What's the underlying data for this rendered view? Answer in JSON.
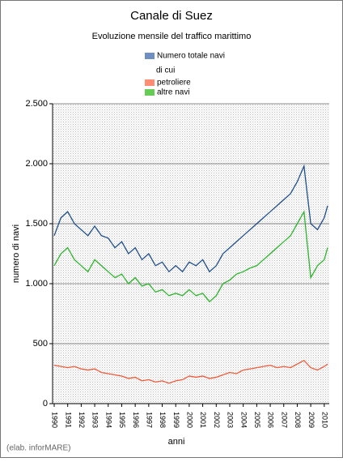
{
  "chart_data": {
    "type": "line",
    "title": "Canale di Suez",
    "subtitle": "Evoluzione mensile del traffico marittimo",
    "y_label": "numero di navi",
    "x_label": "anni",
    "legend_note": "di cui",
    "source": "(elab. inforMARE)",
    "x": [
      1990,
      1990.5,
      1991,
      1991.5,
      1992,
      1992.5,
      1993,
      1993.5,
      1994,
      1994.5,
      1995,
      1995.5,
      1996,
      1996.5,
      1997,
      1997.5,
      1998,
      1998.5,
      1999,
      1999.5,
      2000,
      2000.5,
      2001,
      2001.5,
      2002,
      2002.5,
      2003,
      2003.5,
      2004,
      2004.5,
      2005,
      2005.5,
      2006,
      2006.5,
      2007,
      2007.5,
      2008,
      2008.5,
      2009,
      2009.5,
      2010,
      2010.25
    ],
    "series": [
      {
        "name": "Numero totale navi",
        "color": "#1f4e8c",
        "legend_color": "#6f8fc2",
        "values": [
          1400,
          1550,
          1600,
          1500,
          1450,
          1400,
          1480,
          1400,
          1380,
          1300,
          1350,
          1250,
          1300,
          1200,
          1250,
          1150,
          1180,
          1100,
          1150,
          1100,
          1180,
          1150,
          1200,
          1100,
          1150,
          1250,
          1300,
          1350,
          1400,
          1450,
          1500,
          1550,
          1600,
          1650,
          1700,
          1750,
          1850,
          1980,
          1500,
          1450,
          1550,
          1650
        ]
      },
      {
        "name": "petroliere",
        "color": "#f05a3a",
        "legend_color": "#ff8c73",
        "values": [
          320,
          310,
          300,
          310,
          290,
          280,
          290,
          260,
          250,
          240,
          230,
          210,
          220,
          190,
          200,
          180,
          190,
          170,
          190,
          200,
          230,
          220,
          230,
          210,
          220,
          240,
          260,
          250,
          280,
          290,
          300,
          310,
          320,
          300,
          310,
          300,
          330,
          360,
          300,
          280,
          310,
          330
        ]
      },
      {
        "name": "altre navi",
        "color": "#2cb52c",
        "legend_color": "#66cc55",
        "values": [
          1150,
          1250,
          1300,
          1200,
          1150,
          1100,
          1200,
          1150,
          1100,
          1050,
          1080,
          1000,
          1050,
          980,
          1000,
          930,
          950,
          900,
          920,
          900,
          950,
          900,
          920,
          850,
          900,
          1000,
          1030,
          1080,
          1100,
          1130,
          1150,
          1200,
          1250,
          1300,
          1350,
          1400,
          1500,
          1600,
          1050,
          1150,
          1200,
          1300
        ]
      }
    ],
    "xlim": [
      1990,
      2010.25
    ],
    "xticks": [
      1990,
      1991,
      1992,
      1993,
      1994,
      1995,
      1996,
      1997,
      1998,
      1999,
      2000,
      2001,
      2002,
      2003,
      2004,
      2005,
      2006,
      2007,
      2008,
      2009,
      2010
    ],
    "ylim": [
      0,
      2500
    ],
    "yticks": [
      0,
      {
        "value": 500,
        "label": "500"
      },
      {
        "value": 1000,
        "label": "1.000"
      },
      {
        "value": 1500,
        "label": "1.500"
      },
      {
        "value": 2000,
        "label": "2.000"
      },
      {
        "value": 2500,
        "label": "2.500"
      }
    ],
    "grid": true
  }
}
